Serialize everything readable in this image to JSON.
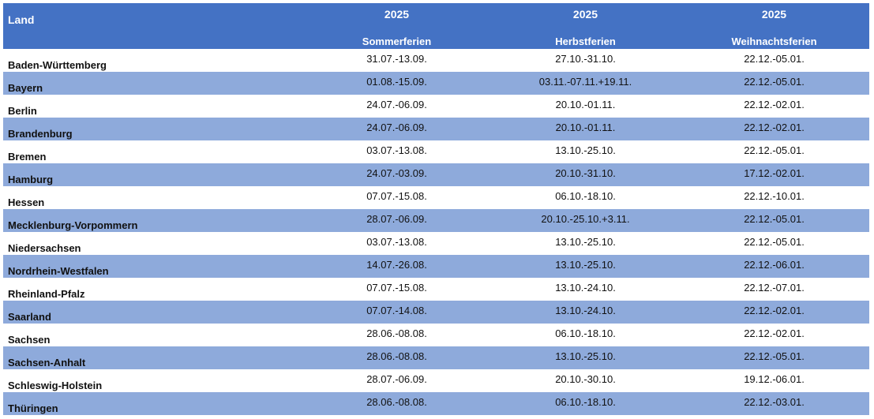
{
  "table": {
    "header": {
      "land": "Land",
      "columns": [
        {
          "year": "2025",
          "name": "Sommerferien"
        },
        {
          "year": "2025",
          "name": "Herbstferien"
        },
        {
          "year": "2025",
          "name": "Weihnachtsferien"
        }
      ]
    },
    "rows": [
      [
        "Baden-Württemberg",
        "31.07.-13.09.",
        "27.10.-31.10.",
        "22.12.-05.01."
      ],
      [
        "Bayern",
        "01.08.-15.09.",
        "03.11.-07.11.+19.11.",
        "22.12.-05.01."
      ],
      [
        "Berlin",
        "24.07.-06.09.",
        "20.10.-01.11.",
        "22.12.-02.01."
      ],
      [
        "Brandenburg",
        "24.07.-06.09.",
        "20.10.-01.11.",
        "22.12.-02.01."
      ],
      [
        "Bremen",
        "03.07.-13.08.",
        "13.10.-25.10.",
        "22.12.-05.01."
      ],
      [
        "Hamburg",
        "24.07.-03.09.",
        "20.10.-31.10.",
        "17.12.-02.01."
      ],
      [
        "Hessen",
        "07.07.-15.08.",
        "06.10.-18.10.",
        "22.12.-10.01."
      ],
      [
        "Mecklenburg-Vorpommern",
        "28.07.-06.09.",
        "20.10.-25.10.+3.11.",
        "22.12.-05.01."
      ],
      [
        "Niedersachsen",
        "03.07.-13.08.",
        "13.10.-25.10.",
        "22.12.-05.01."
      ],
      [
        "Nordrhein-Westfalen",
        "14.07.-26.08.",
        "13.10.-25.10.",
        "22.12.-06.01."
      ],
      [
        "Rheinland-Pfalz",
        "07.07.-15.08.",
        "13.10.-24.10.",
        "22.12.-07.01."
      ],
      [
        "Saarland",
        "07.07.-14.08.",
        "13.10.-24.10.",
        "22.12.-02.01."
      ],
      [
        "Sachsen",
        "28.06.-08.08.",
        "06.10.-18.10.",
        "22.12.-02.01."
      ],
      [
        "Sachsen-Anhalt",
        "28.06.-08.08.",
        "13.10.-25.10.",
        "22.12.-05.01."
      ],
      [
        "Schleswig-Holstein",
        "28.07.-06.09.",
        "20.10.-30.10.",
        "19.12.-06.01."
      ],
      [
        "Thüringen",
        "28.06.-08.08.",
        "06.10.-18.10.",
        "22.12.-03.01."
      ]
    ]
  }
}
